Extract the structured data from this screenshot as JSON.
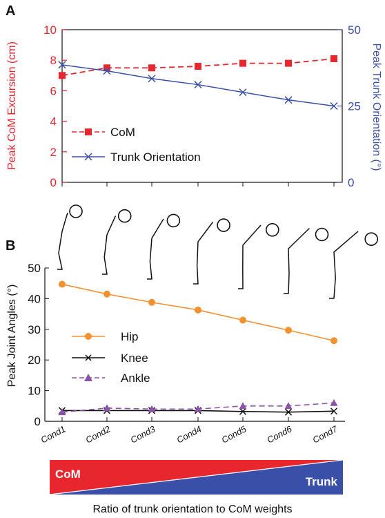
{
  "figure": {
    "panel_a_label": "A",
    "panel_b_label": "B",
    "bar_left_label": "CoM",
    "bar_right_label": "Trunk",
    "caption": "Ratio of trunk orientation to CoM weights"
  },
  "colors": {
    "com": "#e8262e",
    "trunk": "#3a50a8",
    "hip": "#f39030",
    "knee": "#111111",
    "ankle": "#8a52a8"
  },
  "chart_data": [
    {
      "type": "line",
      "panel": "A",
      "x": [
        1,
        2,
        3,
        4,
        5,
        6,
        7
      ],
      "ylabel_left": "Peak CoM Excursion (cm)",
      "ylabel_right": "Peak Trunk Orientation (°)",
      "ylim_left": [
        0,
        10
      ],
      "yticks_left": [
        "0",
        "2",
        "4",
        "6",
        "8",
        "10"
      ],
      "ylim_right": [
        0,
        50
      ],
      "yticks_right": [
        "0",
        "25",
        "50"
      ],
      "legend_position": "lower-left",
      "series": [
        {
          "name": "CoM",
          "axis": "left",
          "marker": "square",
          "dash": "dashed",
          "values": [
            7.0,
            7.5,
            7.5,
            7.6,
            7.8,
            7.8,
            8.1
          ]
        },
        {
          "name": "Trunk Orientation",
          "axis": "right",
          "marker": "x",
          "dash": "solid",
          "values": [
            38.5,
            36.5,
            34.0,
            32.0,
            29.5,
            27.0,
            25.0
          ]
        }
      ]
    },
    {
      "type": "line",
      "panel": "B",
      "categories": [
        "Cond1",
        "Cond2",
        "Cond3",
        "Cond4",
        "Cond5",
        "Cond6",
        "Cond7"
      ],
      "ylabel": "Peak Joint Angles (°)",
      "ylim": [
        0,
        50
      ],
      "yticks": [
        "0",
        "10",
        "20",
        "30",
        "40",
        "50"
      ],
      "legend_position": "center-left",
      "series": [
        {
          "name": "Hip",
          "marker": "circle",
          "dash": "solid",
          "values": [
            44.7,
            41.5,
            38.8,
            36.3,
            33.0,
            29.7,
            26.3
          ]
        },
        {
          "name": "Knee",
          "marker": "x",
          "dash": "solid",
          "values": [
            3.5,
            3.5,
            3.5,
            3.5,
            3.2,
            3.0,
            3.3
          ]
        },
        {
          "name": "Ankle",
          "marker": "triangle",
          "dash": "dashed",
          "values": [
            3.0,
            4.3,
            4.0,
            4.0,
            5.0,
            5.0,
            6.0
          ]
        }
      ]
    }
  ]
}
